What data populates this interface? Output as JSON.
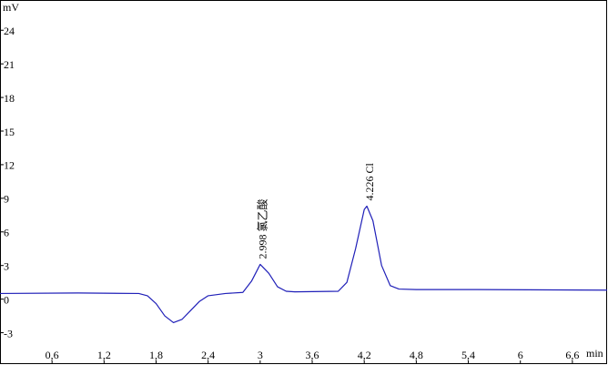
{
  "chart_data": {
    "type": "line",
    "y_label": "mV",
    "x_label": "min",
    "xlim": [
      0,
      7.0
    ],
    "ylim": [
      -5.8,
      26.7
    ],
    "xticks": [
      {
        "value": 0.6,
        "label": "0,6"
      },
      {
        "value": 1.2,
        "label": "1,2"
      },
      {
        "value": 1.8,
        "label": "1,8"
      },
      {
        "value": 2.4,
        "label": "2,4"
      },
      3,
      {
        "value": 3.6,
        "label": "3,6"
      },
      {
        "value": 4.2,
        "label": "4,2"
      },
      {
        "value": 4.8,
        "label": "4,8"
      },
      {
        "value": 5.4,
        "label": "5,4"
      },
      6,
      {
        "value": 6.6,
        "label": "6,6"
      }
    ],
    "yticks": [
      -3,
      0,
      3,
      6,
      9,
      12,
      15,
      18,
      21,
      24
    ],
    "x": [
      0,
      0.9,
      1.6,
      1.7,
      1.8,
      1.9,
      2.0,
      2.1,
      2.2,
      2.3,
      2.4,
      2.6,
      2.8,
      2.9,
      3.0,
      3.1,
      3.2,
      3.3,
      3.4,
      3.9,
      4.0,
      4.1,
      4.2,
      4.23,
      4.3,
      4.4,
      4.5,
      4.6,
      4.8,
      5.5,
      7.0
    ],
    "series": [
      {
        "color": "#1f1fb8",
        "values": [
          0.5,
          0.55,
          0.5,
          0.3,
          -0.4,
          -1.5,
          -2.1,
          -1.8,
          -1.0,
          -0.2,
          0.3,
          0.5,
          0.6,
          1.6,
          3.1,
          2.3,
          1.1,
          0.7,
          0.65,
          0.7,
          1.5,
          4.5,
          8.0,
          8.3,
          7.0,
          3.0,
          1.2,
          0.9,
          0.85,
          0.85,
          0.8
        ]
      }
    ],
    "annotations": [
      {
        "text": "2.998  氯乙酸",
        "x": 3.0,
        "y": 3.1
      },
      {
        "text": "4.226  Cl",
        "x": 4.23,
        "y": 8.3
      }
    ]
  }
}
